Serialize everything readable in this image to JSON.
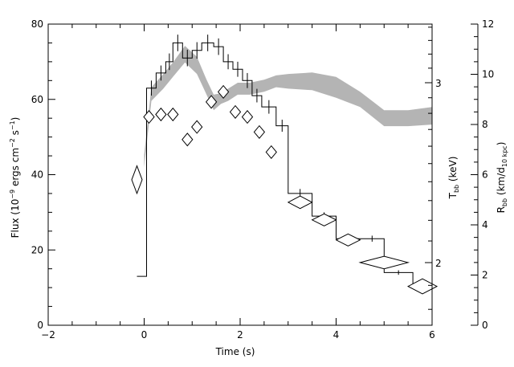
{
  "chart_data": {
    "type": "line",
    "xlabel": "Time (s)",
    "x_ticks": [
      "−2",
      "0",
      "2",
      "4",
      "6"
    ],
    "xlim": [
      -2,
      6
    ],
    "left_axis": {
      "label_parts": [
        "Flux (10",
        "−9",
        " ergs cm",
        "−2",
        " s",
        "−1",
        ")"
      ],
      "ticks": [
        "0",
        "20",
        "40",
        "60",
        "80"
      ],
      "ylim": [
        0,
        80
      ]
    },
    "tbb_axis": {
      "label_main": "T",
      "label_sub": "bb",
      "label_tail": " (keV)",
      "ticks": [
        {
          "label": "2",
          "value": 2
        },
        {
          "label": "3",
          "value": 3
        }
      ],
      "scale": "log"
    },
    "rbb_axis": {
      "label_main": "R",
      "label_sub": "bb",
      "label_mid": " (km/d",
      "label_sub2": "10 kpc",
      "label_tail": ")",
      "ticks": [
        "0",
        "2",
        "4",
        "6",
        "8",
        "10",
        "12"
      ],
      "ylim": [
        0,
        12
      ]
    },
    "flux_step": {
      "edges": [
        -0.15,
        0.05,
        0.25,
        0.45,
        0.6,
        0.8,
        1.0,
        1.2,
        1.45,
        1.65,
        1.85,
        2.05,
        2.25,
        2.45,
        2.75,
        3.0,
        3.5,
        4.0,
        4.5,
        5.0,
        5.6,
        6.0
      ],
      "values": [
        13,
        63,
        67,
        70,
        75,
        71,
        73,
        75,
        74,
        70,
        68,
        65,
        61,
        58,
        53,
        35,
        29,
        23,
        23,
        14,
        10
      ],
      "errors": [
        0,
        2,
        2,
        2.2,
        2.2,
        2.2,
        2.2,
        2.2,
        2.2,
        2,
        2,
        2,
        1.8,
        1.8,
        1.6,
        1.2,
        1,
        0.8,
        0.8,
        0.6,
        0.5
      ]
    },
    "tbb_band": {
      "x": [
        0.0,
        0.15,
        0.4,
        0.6,
        0.85,
        1.1,
        1.3,
        1.45,
        1.6,
        1.75,
        1.95,
        2.2,
        2.5,
        2.75,
        3.0,
        3.5,
        4.0,
        4.5,
        5.0,
        5.5,
        6.0
      ],
      "lower": [
        2.48,
        2.88,
        2.96,
        3.04,
        3.14,
        3.06,
        2.92,
        2.82,
        2.86,
        2.88,
        2.92,
        2.92,
        2.94,
        2.97,
        2.96,
        2.95,
        2.9,
        2.84,
        2.72,
        2.72,
        2.73
      ],
      "upper": [
        2.55,
        2.97,
        3.06,
        3.14,
        3.26,
        3.18,
        3.02,
        2.92,
        2.93,
        2.96,
        3.0,
        3.0,
        3.02,
        3.05,
        3.06,
        3.07,
        3.04,
        2.94,
        2.82,
        2.82,
        2.84
      ]
    },
    "rbb_points": [
      {
        "t": -0.15,
        "r": 5.8,
        "t_err": 0.1,
        "r_err": 0.55
      },
      {
        "t": 0.1,
        "r": 8.3,
        "t_err": 0.1,
        "r_err": 0.25
      },
      {
        "t": 0.35,
        "r": 8.4,
        "t_err": 0.1,
        "r_err": 0.25
      },
      {
        "t": 0.6,
        "r": 8.4,
        "t_err": 0.1,
        "r_err": 0.25
      },
      {
        "t": 0.9,
        "r": 7.4,
        "t_err": 0.1,
        "r_err": 0.25
      },
      {
        "t": 1.1,
        "r": 7.9,
        "t_err": 0.1,
        "r_err": 0.25
      },
      {
        "t": 1.4,
        "r": 8.9,
        "t_err": 0.1,
        "r_err": 0.25
      },
      {
        "t": 1.65,
        "r": 9.3,
        "t_err": 0.1,
        "r_err": 0.25
      },
      {
        "t": 1.9,
        "r": 8.5,
        "t_err": 0.1,
        "r_err": 0.25
      },
      {
        "t": 2.15,
        "r": 8.3,
        "t_err": 0.1,
        "r_err": 0.25
      },
      {
        "t": 2.4,
        "r": 7.7,
        "t_err": 0.1,
        "r_err": 0.25
      },
      {
        "t": 2.65,
        "r": 6.9,
        "t_err": 0.1,
        "r_err": 0.25
      },
      {
        "t": 3.25,
        "r": 4.9,
        "t_err": 0.25,
        "r_err": 0.25
      },
      {
        "t": 3.75,
        "r": 4.2,
        "t_err": 0.25,
        "r_err": 0.2
      },
      {
        "t": 4.25,
        "r": 3.4,
        "t_err": 0.25,
        "r_err": 0.2
      },
      {
        "t": 5.0,
        "r": 2.5,
        "t_err": 0.5,
        "r_err": 0.25
      },
      {
        "t": 5.8,
        "r": 1.55,
        "t_err": 0.3,
        "r_err": 0.3
      }
    ],
    "colors": {
      "axes": "#000000",
      "band": "#b4b4b4",
      "step": "#000000",
      "markers": "#000000"
    },
    "grid": false
  }
}
